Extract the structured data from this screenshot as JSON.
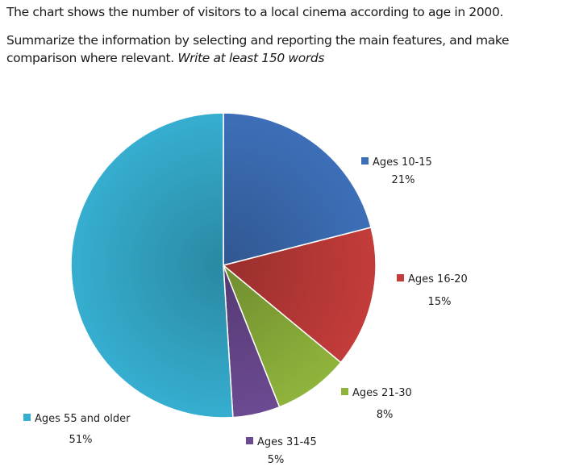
{
  "task": {
    "line1": "The chart shows the number of visitors to a local cinema according to age in 2000.",
    "line2_normal": "Summarize the information by selecting and reporting the main features, and make comparison where relevant.",
    "line2_italic": "Write at least 150 words"
  },
  "chart_data": {
    "type": "pie",
    "title": "",
    "slices": [
      {
        "label": "Ages 10-15",
        "value": 21,
        "pct_label": "21%",
        "color": "#3d6fb8"
      },
      {
        "label": "Ages 16-20",
        "value": 15,
        "pct_label": "15%",
        "color": "#c33c3a"
      },
      {
        "label": "Ages 21-30",
        "value": 8,
        "pct_label": "8%",
        "color": "#8fb43c"
      },
      {
        "label": "Ages 31-45",
        "value": 5,
        "pct_label": "5%",
        "color": "#6c4a92"
      },
      {
        "label": "Ages 55 and older",
        "value": 51,
        "pct_label": "51%",
        "color": "#36aed0"
      }
    ]
  }
}
